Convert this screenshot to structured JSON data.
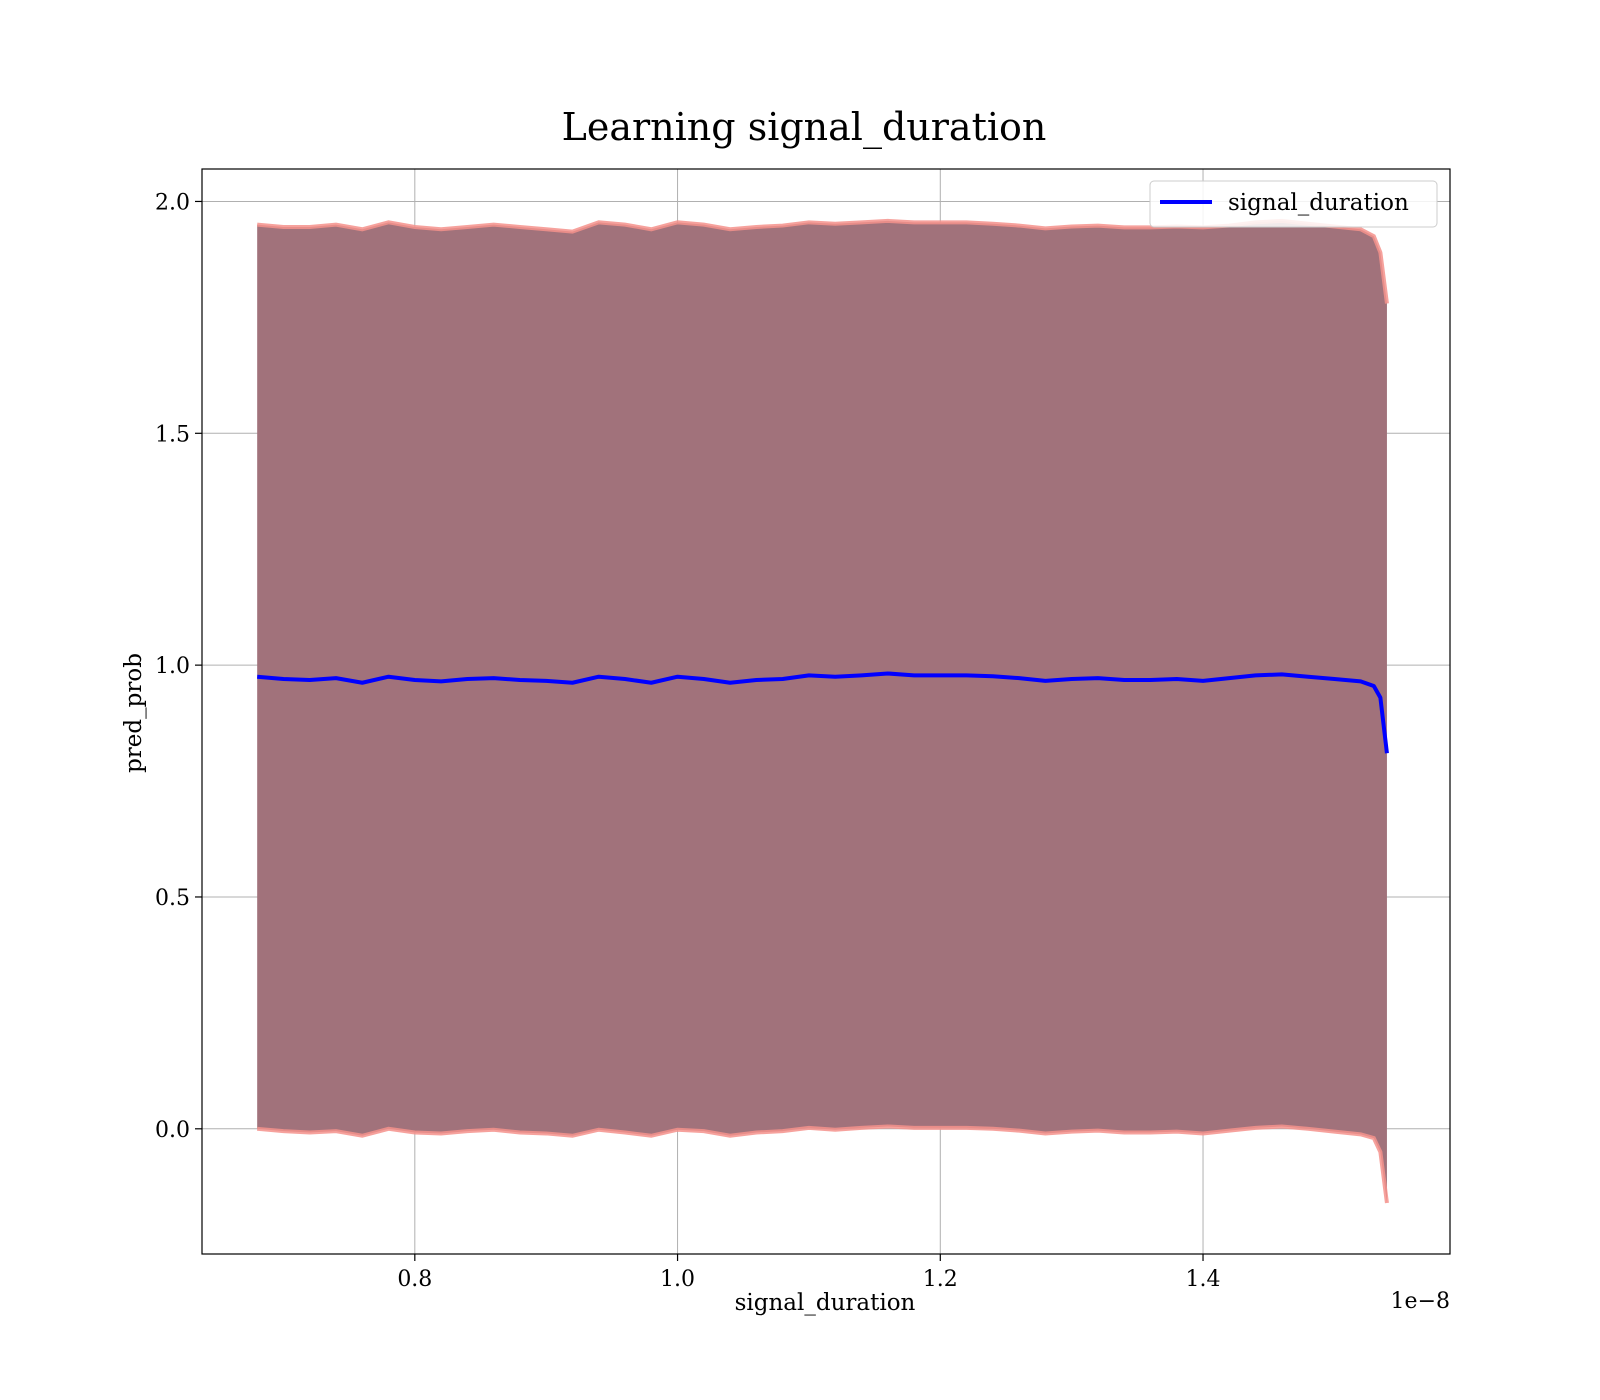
{
  "chart_data": {
    "type": "line",
    "title": "Learning signal_duration",
    "xlabel": "signal_duration",
    "ylabel": "pred_prob",
    "x_offset_label": "1e−8",
    "x_scale": 1e-08,
    "xlim": [
      0.638,
      1.588
    ],
    "ylim": [
      -0.27,
      2.07
    ],
    "x_ticks": [
      0.8,
      1.0,
      1.2,
      1.4
    ],
    "x_tick_labels": [
      "0.8",
      "1.0",
      "1.2",
      "1.4"
    ],
    "y_ticks": [
      0.0,
      0.5,
      1.0,
      1.5,
      2.0
    ],
    "y_tick_labels": [
      "0.0",
      "0.5",
      "1.0",
      "1.5",
      "2.0"
    ],
    "grid": true,
    "legend_position": "upper right",
    "series": [
      {
        "name": "signal_duration",
        "color": "#0000ff",
        "x": [
          0.68,
          0.7,
          0.72,
          0.74,
          0.76,
          0.78,
          0.8,
          0.82,
          0.84,
          0.86,
          0.88,
          0.9,
          0.92,
          0.94,
          0.96,
          0.98,
          1.0,
          1.02,
          1.04,
          1.06,
          1.08,
          1.1,
          1.12,
          1.14,
          1.16,
          1.18,
          1.2,
          1.22,
          1.24,
          1.26,
          1.28,
          1.3,
          1.32,
          1.34,
          1.36,
          1.38,
          1.4,
          1.42,
          1.44,
          1.46,
          1.48,
          1.5,
          1.52,
          1.53,
          1.535,
          1.54
        ],
        "y": [
          0.975,
          0.97,
          0.968,
          0.972,
          0.962,
          0.975,
          0.968,
          0.965,
          0.97,
          0.972,
          0.968,
          0.966,
          0.962,
          0.975,
          0.97,
          0.962,
          0.975,
          0.97,
          0.962,
          0.968,
          0.97,
          0.978,
          0.975,
          0.978,
          0.982,
          0.978,
          0.978,
          0.978,
          0.976,
          0.972,
          0.966,
          0.97,
          0.972,
          0.968,
          0.968,
          0.97,
          0.966,
          0.972,
          0.978,
          0.98,
          0.975,
          0.97,
          0.965,
          0.955,
          0.93,
          0.81
        ]
      }
    ],
    "band": {
      "upper": [
        1.95,
        1.945,
        1.945,
        1.95,
        1.94,
        1.955,
        1.945,
        1.94,
        1.945,
        1.95,
        1.945,
        1.94,
        1.935,
        1.955,
        1.95,
        1.94,
        1.955,
        1.95,
        1.94,
        1.945,
        1.948,
        1.955,
        1.952,
        1.955,
        1.958,
        1.955,
        1.955,
        1.955,
        1.952,
        1.948,
        1.942,
        1.946,
        1.948,
        1.944,
        1.944,
        1.946,
        1.944,
        1.948,
        1.955,
        1.958,
        1.952,
        1.946,
        1.94,
        1.925,
        1.89,
        1.78
      ],
      "lower": [
        0.0,
        -0.005,
        -0.008,
        -0.005,
        -0.015,
        0.0,
        -0.008,
        -0.01,
        -0.005,
        -0.002,
        -0.008,
        -0.01,
        -0.015,
        -0.002,
        -0.008,
        -0.015,
        -0.002,
        -0.005,
        -0.015,
        -0.008,
        -0.005,
        0.002,
        -0.002,
        0.002,
        0.005,
        0.002,
        0.002,
        0.002,
        0.0,
        -0.004,
        -0.01,
        -0.006,
        -0.004,
        -0.008,
        -0.008,
        -0.006,
        -0.01,
        -0.004,
        0.002,
        0.005,
        0.0,
        -0.006,
        -0.012,
        -0.02,
        -0.05,
        -0.16
      ],
      "fill_color": "#a1727b",
      "edge_color": "#f4928c"
    }
  }
}
